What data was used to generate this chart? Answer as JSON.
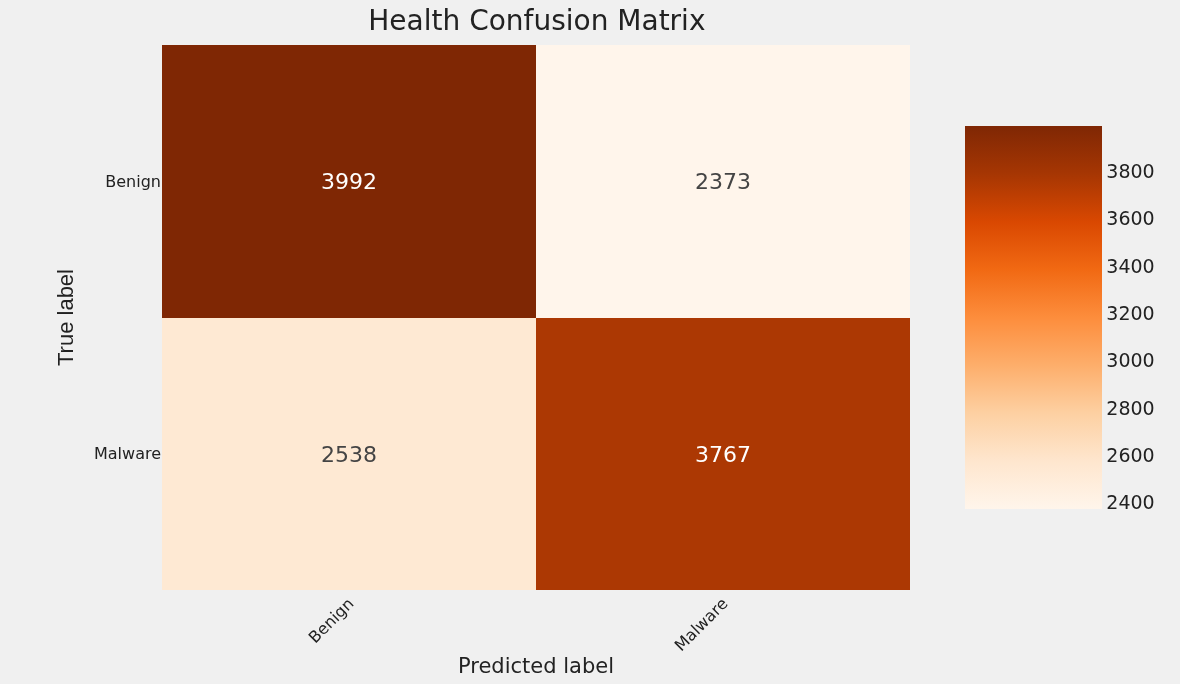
{
  "chart_data": {
    "type": "heatmap",
    "title": "Health Confusion Matrix",
    "xlabel": "Predicted label",
    "ylabel": "True label",
    "categories": [
      "Benign",
      "Malware"
    ],
    "y_categories": [
      "Benign",
      "Malware"
    ],
    "cells": [
      [
        3992,
        2373
      ],
      [
        2538,
        3767
      ]
    ],
    "data_labels": true,
    "clim": [
      2373,
      3992
    ],
    "cticks": [
      2400,
      2600,
      2800,
      3000,
      3200,
      3400,
      3600,
      3800
    ]
  }
}
